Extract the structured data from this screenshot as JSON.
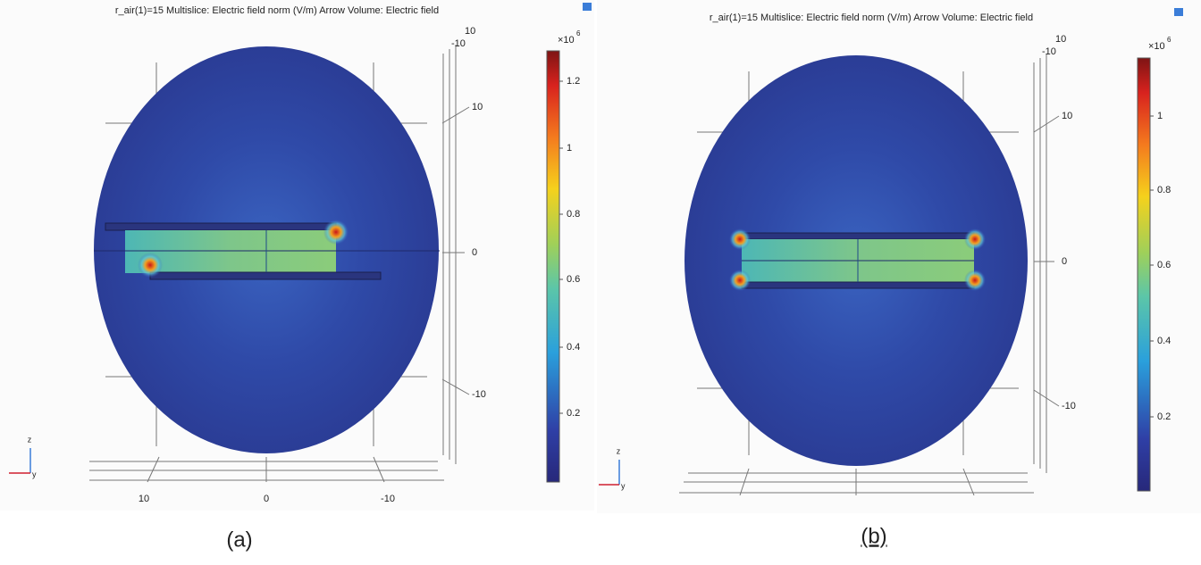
{
  "panels": [
    {
      "title": "r_air(1)=15   Multislice: Electric field norm (V/m)  Arrow Volume: Electric field",
      "colorbar": {
        "multiplier": "×10",
        "exponent": "6",
        "ticks": [
          "1.2",
          "1",
          "0.8",
          "0.6",
          "0.4",
          "0.2"
        ]
      },
      "axis_labels": {
        "top": [
          "10",
          "-10"
        ],
        "right": [
          "10",
          "0",
          "-10"
        ],
        "bottom": [
          "10",
          "0",
          "-10"
        ]
      },
      "triad": [
        "z",
        "y"
      ],
      "caption": "(a)"
    },
    {
      "title": "r_air(1)=15   Multislice: Electric field norm (V/m)  Arrow Volume: Electric field",
      "colorbar": {
        "multiplier": "×10",
        "exponent": "6",
        "ticks": [
          "1",
          "0.8",
          "0.6",
          "0.4",
          "0.2"
        ]
      },
      "axis_labels": {
        "top": [
          "10",
          "-10"
        ],
        "right": [
          "10",
          "0",
          "-10"
        ]
      },
      "triad": [
        "z",
        "y"
      ],
      "caption": "(b)"
    }
  ]
}
